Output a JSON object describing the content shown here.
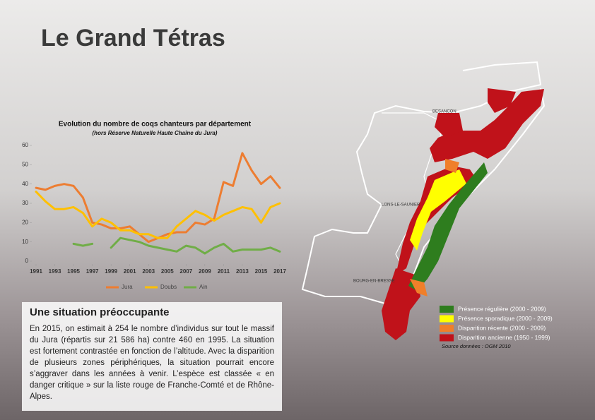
{
  "title": "Le Grand Tétras",
  "chart_data": {
    "type": "line",
    "title": "Evolution du nombre de coqs chanteurs par département",
    "subtitle": "(hors Réserve Naturelle Haute Chaîne du Jura)",
    "x": [
      1991,
      1992,
      1993,
      1994,
      1995,
      1996,
      1997,
      1998,
      1999,
      2000,
      2001,
      2002,
      2003,
      2004,
      2005,
      2006,
      2007,
      2008,
      2009,
      2010,
      2011,
      2012,
      2013,
      2014,
      2015,
      2016,
      2017
    ],
    "series": [
      {
        "name": "Jura",
        "color": "#ed7d31",
        "values": [
          38,
          37,
          39,
          40,
          39,
          33,
          20,
          19,
          17,
          17,
          18,
          14,
          10,
          12,
          14,
          15,
          15,
          20,
          19,
          22,
          41,
          39,
          56,
          47,
          40,
          44,
          38
        ]
      },
      {
        "name": "Doubs",
        "color": "#ffc000",
        "values": [
          36,
          31,
          27,
          27,
          28,
          25,
          18,
          22,
          20,
          16,
          16,
          14,
          14,
          12,
          12,
          18,
          22,
          26,
          24,
          21,
          24,
          26,
          28,
          27,
          20,
          28,
          30
        ]
      },
      {
        "name": "Ain",
        "color": "#70ad47",
        "values": [
          null,
          null,
          null,
          null,
          9,
          8,
          9,
          null,
          7,
          12,
          11,
          10,
          8,
          7,
          6,
          5,
          8,
          7,
          4,
          7,
          9,
          5,
          6,
          6,
          6,
          7,
          5
        ]
      }
    ],
    "xlim": [
      1991,
      2017
    ],
    "xticks": [
      1991,
      1993,
      1995,
      1997,
      1999,
      2001,
      2003,
      2005,
      2007,
      2009,
      2011,
      2013,
      2015,
      2017
    ],
    "ylim": [
      0,
      60
    ],
    "yticks": [
      0,
      10,
      20,
      30,
      40,
      50,
      60
    ]
  },
  "section": {
    "heading": "Une situation préoccupante",
    "text": "En 2015, on estimait à 254 le nombre d’individus sur tout le massif du Jura (répartis sur 21 586 ha) contre 460 en 1995. La situation est fortement contrastée en fonction de l’altitude. Avec la disparition de plusieurs zones périphériques, la situation pourrait encore s’aggraver dans les années à venir. L’espèce est classée « en danger critique » sur la liste rouge de Franche-Comté et de Rhône-Alpes."
  },
  "map": {
    "cities": [
      "BESANCON",
      "LONS-LE-SAUNIER",
      "BOURG-EN-BRESSE"
    ],
    "legend": [
      {
        "label": "Présence régulière (2000 - 2009)",
        "color": "#2e7d1e"
      },
      {
        "label": "Présence sporadique (2000 - 2009)",
        "color": "#ffff00"
      },
      {
        "label": "Disparition récente (2000 - 2009)",
        "color": "#f07f2a"
      },
      {
        "label": "Disparition ancienne (1950 - 1999)",
        "color": "#c0121a"
      }
    ],
    "source": "Source données : OGM 2010"
  }
}
